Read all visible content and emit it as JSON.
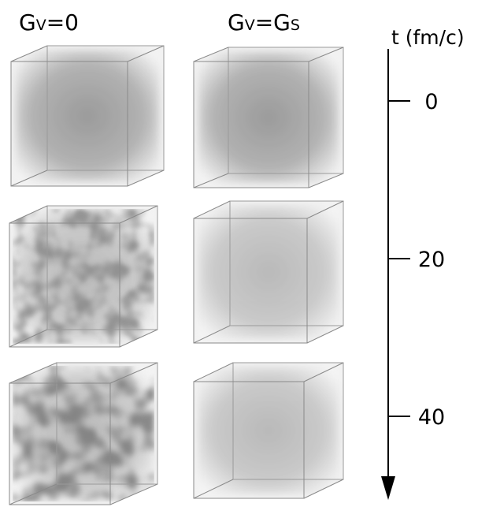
{
  "columns": [
    [
      {
        "text": "G"
      },
      {
        "text": "V",
        "sub": true
      },
      {
        "text": "=0"
      }
    ],
    [
      {
        "text": "G"
      },
      {
        "text": "V",
        "sub": true
      },
      {
        "text": "=G"
      },
      {
        "text": "S",
        "sub": true
      }
    ]
  ],
  "axis": {
    "label": "t (fm/c)",
    "ticks": [
      0,
      20,
      40
    ]
  }
}
